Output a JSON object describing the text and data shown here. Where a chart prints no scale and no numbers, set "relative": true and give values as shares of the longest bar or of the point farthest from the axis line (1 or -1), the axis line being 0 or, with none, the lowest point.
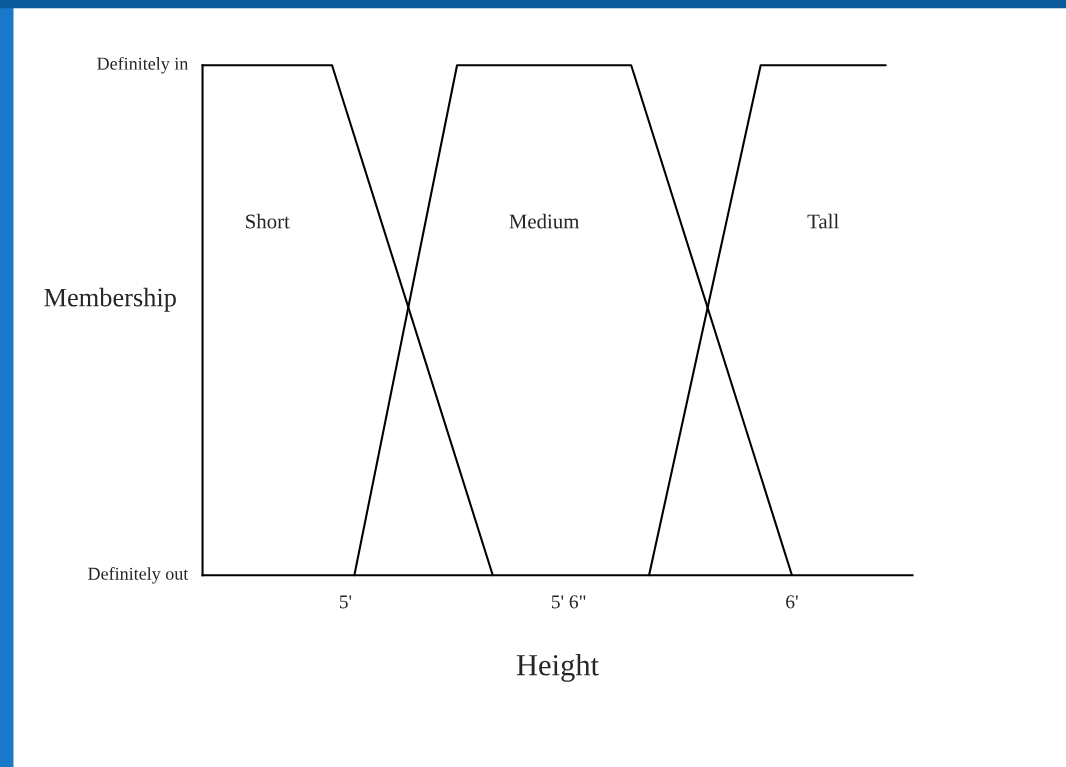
{
  "chart_data": {
    "type": "line",
    "xlabel": "Height",
    "ylabel": "Membership",
    "relative": true,
    "xlim": [
      4.68,
      6.27
    ],
    "xticks": [
      {
        "value": 5,
        "label": "5'"
      },
      {
        "value": 5.5,
        "label": "5' 6\""
      },
      {
        "value": 6,
        "label": "6'"
      }
    ],
    "annotations": [
      "Definitely in",
      "Definitely out",
      "Short",
      "Medium",
      "Tall"
    ],
    "grid": false,
    "legend": false,
    "marker": "none",
    "line_style": "solid",
    "series": [
      {
        "color": "#000000",
        "x": [
          4.68,
          4.97,
          5.33
        ],
        "values": [
          1,
          1,
          0
        ]
      },
      {
        "color": "#000000",
        "x": [
          5.02,
          5.25,
          5.64,
          6.0
        ],
        "values": [
          0,
          1,
          1,
          0
        ]
      },
      {
        "color": "#000000",
        "x": [
          5.68,
          5.93,
          6.21
        ],
        "values": [
          0,
          1,
          1
        ]
      }
    ]
  }
}
